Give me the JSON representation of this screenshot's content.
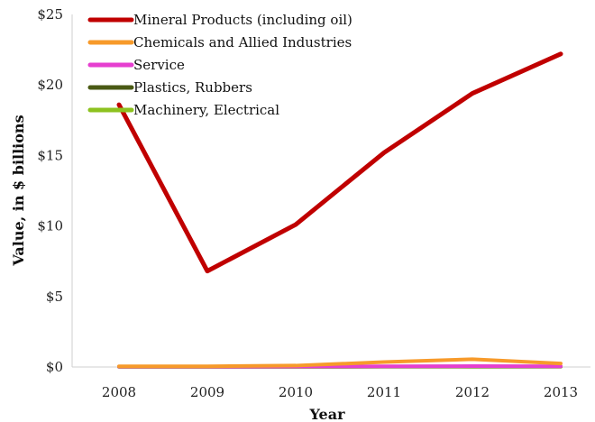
{
  "chart_data": {
    "type": "line",
    "title": "",
    "xlabel": "Year",
    "ylabel": "Value, in $ billions",
    "categories": [
      "2008",
      "2009",
      "2010",
      "2011",
      "2012",
      "2013"
    ],
    "y_ticks": [
      "$0",
      "$5",
      "$10",
      "$15",
      "$20",
      "$25"
    ],
    "ylim": [
      0,
      25
    ],
    "grid": false,
    "legend_position": "top-left",
    "series": [
      {
        "name": "Mineral Products (including oil)",
        "color": "#c00000",
        "values": [
          18.6,
          6.8,
          10.1,
          15.2,
          19.4,
          22.2
        ]
      },
      {
        "name": "Chemicals and Allied Industries",
        "color": "#f79a2a",
        "values": [
          0.05,
          0.05,
          0.1,
          0.35,
          0.55,
          0.25
        ]
      },
      {
        "name": "Service",
        "color": "#e63fd0",
        "values": [
          0.02,
          0.02,
          0.03,
          0.05,
          0.06,
          0.05
        ]
      },
      {
        "name": "Plastics, Rubbers",
        "color": "#4a5a14",
        "values": [
          0.02,
          0.02,
          0.02,
          0.03,
          0.04,
          0.03
        ]
      },
      {
        "name": "Machinery, Electrical",
        "color": "#8dc21f",
        "values": [
          0.01,
          0.01,
          0.01,
          0.02,
          0.02,
          0.02
        ]
      }
    ]
  }
}
